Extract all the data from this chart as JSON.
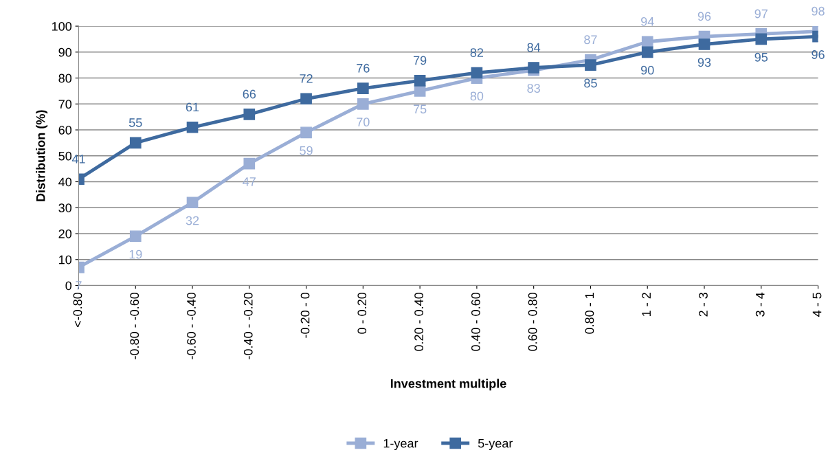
{
  "chart_data": {
    "type": "line",
    "xlabel": "Investment multiple",
    "ylabel": "Distribution (%)",
    "categories": [
      "<-0.80",
      "-0.80 - -0.60",
      "-0.60 - -0.40",
      "-0.40 - -0.20",
      "-0.20 - 0",
      "0 - 0.20",
      "0.20 - 0.40",
      "0.40 - 0.60",
      "0.60 - 0.80",
      "0.80 - 1",
      "1 - 2",
      "2 - 3",
      "3 - 4",
      "4 - 5"
    ],
    "series": [
      {
        "name": "1-year",
        "color": "#9aaed6",
        "values": [
          7,
          19,
          32,
          47,
          59,
          70,
          75,
          80,
          83,
          87,
          94,
          96,
          97,
          98
        ]
      },
      {
        "name": "5-year",
        "color": "#3e6a9f",
        "values": [
          41,
          55,
          61,
          66,
          72,
          76,
          79,
          82,
          84,
          85,
          90,
          93,
          95,
          96
        ]
      }
    ],
    "ylim": [
      0,
      100
    ],
    "yticks": [
      0,
      10,
      20,
      30,
      40,
      50,
      60,
      70,
      80,
      90,
      100
    ],
    "grid": "y",
    "legend": "bottom",
    "marker": "square",
    "line_style": "solid",
    "data_labels": true
  }
}
